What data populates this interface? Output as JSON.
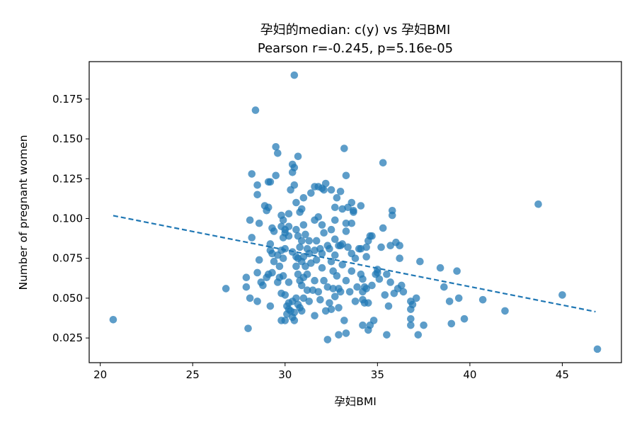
{
  "chart_data": {
    "type": "scatter",
    "title": "孕妇的median: c(y) vs 孕妇BMI",
    "subtitle": "Pearson r=-0.245, p=5.16e-05",
    "xlabel": "孕妇BMI",
    "ylabel": "Number of pregnant women",
    "xlim": [
      19.4,
      48.2
    ],
    "ylim": [
      0.0095,
      0.1985
    ],
    "xticks": [
      20,
      25,
      30,
      35,
      40,
      45
    ],
    "yticks": [
      0.025,
      0.05,
      0.075,
      0.1,
      0.125,
      0.15,
      0.175
    ],
    "ytick_labels": [
      "0.025",
      "0.050",
      "0.075",
      "0.100",
      "0.125",
      "0.150",
      "0.175"
    ],
    "point_color": "#1f77b4",
    "trend_line": {
      "style": "dashed",
      "color": "#1f77b4",
      "x": [
        20.7,
        46.8
      ],
      "y": [
        0.1018,
        0.0415
      ]
    },
    "points": [
      [
        20.7,
        0.0365
      ],
      [
        26.8,
        0.056
      ],
      [
        27.9,
        0.063
      ],
      [
        27.9,
        0.057
      ],
      [
        28.0,
        0.031
      ],
      [
        28.1,
        0.099
      ],
      [
        28.2,
        0.128
      ],
      [
        28.2,
        0.088
      ],
      [
        28.1,
        0.05
      ],
      [
        28.4,
        0.168
      ],
      [
        28.5,
        0.115
      ],
      [
        28.5,
        0.121
      ],
      [
        28.5,
        0.066
      ],
      [
        28.5,
        0.048
      ],
      [
        28.6,
        0.097
      ],
      [
        28.6,
        0.074
      ],
      [
        28.7,
        0.06
      ],
      [
        28.8,
        0.058
      ],
      [
        28.9,
        0.108
      ],
      [
        29.0,
        0.105
      ],
      [
        29.0,
        0.063
      ],
      [
        29.1,
        0.123
      ],
      [
        29.1,
        0.107
      ],
      [
        29.1,
        0.065
      ],
      [
        29.2,
        0.123
      ],
      [
        29.2,
        0.084
      ],
      [
        29.2,
        0.08
      ],
      [
        29.2,
        0.045
      ],
      [
        29.3,
        0.094
      ],
      [
        29.3,
        0.078
      ],
      [
        29.3,
        0.066
      ],
      [
        29.4,
        0.092
      ],
      [
        29.4,
        0.073
      ],
      [
        29.5,
        0.145
      ],
      [
        29.5,
        0.127
      ],
      [
        29.6,
        0.141
      ],
      [
        29.6,
        0.077
      ],
      [
        29.6,
        0.06
      ],
      [
        29.7,
        0.07
      ],
      [
        29.7,
        0.063
      ],
      [
        29.8,
        0.102
      ],
      [
        29.8,
        0.095
      ],
      [
        29.8,
        0.08
      ],
      [
        29.8,
        0.053
      ],
      [
        29.8,
        0.036
      ],
      [
        29.9,
        0.099
      ],
      [
        29.9,
        0.088
      ],
      [
        29.9,
        0.075
      ],
      [
        29.9,
        0.064
      ],
      [
        30.0,
        0.093
      ],
      [
        30.0,
        0.091
      ],
      [
        30.0,
        0.081
      ],
      [
        30.0,
        0.052
      ],
      [
        30.0,
        0.036
      ],
      [
        30.1,
        0.045
      ],
      [
        30.1,
        0.04
      ],
      [
        30.2,
        0.103
      ],
      [
        30.2,
        0.095
      ],
      [
        30.2,
        0.089
      ],
      [
        30.2,
        0.06
      ],
      [
        30.2,
        0.047
      ],
      [
        30.2,
        0.043
      ],
      [
        30.3,
        0.118
      ],
      [
        30.3,
        0.042
      ],
      [
        30.4,
        0.134
      ],
      [
        30.4,
        0.129
      ],
      [
        30.4,
        0.079
      ],
      [
        30.4,
        0.048
      ],
      [
        30.4,
        0.038
      ],
      [
        30.5,
        0.19
      ],
      [
        30.5,
        0.132
      ],
      [
        30.5,
        0.121
      ],
      [
        30.5,
        0.036
      ],
      [
        30.5,
        0.041
      ],
      [
        30.6,
        0.11
      ],
      [
        30.6,
        0.093
      ],
      [
        30.6,
        0.076
      ],
      [
        30.6,
        0.07
      ],
      [
        30.6,
        0.05
      ],
      [
        30.7,
        0.139
      ],
      [
        30.7,
        0.089
      ],
      [
        30.7,
        0.075
      ],
      [
        30.7,
        0.065
      ],
      [
        30.7,
        0.046
      ],
      [
        30.8,
        0.104
      ],
      [
        30.8,
        0.082
      ],
      [
        30.8,
        0.061
      ],
      [
        30.8,
        0.044
      ],
      [
        30.9,
        0.106
      ],
      [
        30.9,
        0.086
      ],
      [
        30.9,
        0.073
      ],
      [
        30.9,
        0.058
      ],
      [
        30.9,
        0.042
      ],
      [
        31.0,
        0.113
      ],
      [
        31.0,
        0.096
      ],
      [
        31.0,
        0.076
      ],
      [
        31.0,
        0.063
      ],
      [
        31.0,
        0.05
      ],
      [
        31.1,
        0.09
      ],
      [
        31.1,
        0.07
      ],
      [
        31.2,
        0.081
      ],
      [
        31.2,
        0.065
      ],
      [
        31.2,
        0.055
      ],
      [
        31.3,
        0.086
      ],
      [
        31.3,
        0.078
      ],
      [
        31.3,
        0.048
      ],
      [
        31.4,
        0.116
      ],
      [
        31.4,
        0.072
      ],
      [
        31.5,
        0.055
      ],
      [
        31.6,
        0.12
      ],
      [
        31.6,
        0.099
      ],
      [
        31.6,
        0.08
      ],
      [
        31.6,
        0.061
      ],
      [
        31.6,
        0.039
      ],
      [
        31.7,
        0.086
      ],
      [
        31.7,
        0.074
      ],
      [
        31.8,
        0.12
      ],
      [
        31.8,
        0.101
      ],
      [
        31.8,
        0.054
      ],
      [
        31.9,
        0.081
      ],
      [
        31.9,
        0.049
      ],
      [
        32.0,
        0.119
      ],
      [
        32.0,
        0.096
      ],
      [
        32.0,
        0.078
      ],
      [
        32.0,
        0.069
      ],
      [
        32.1,
        0.118
      ],
      [
        32.1,
        0.091
      ],
      [
        32.1,
        0.061
      ],
      [
        32.2,
        0.122
      ],
      [
        32.2,
        0.042
      ],
      [
        32.3,
        0.083
      ],
      [
        32.3,
        0.057
      ],
      [
        32.3,
        0.024
      ],
      [
        32.4,
        0.081
      ],
      [
        32.4,
        0.047
      ],
      [
        32.5,
        0.118
      ],
      [
        32.5,
        0.093
      ],
      [
        32.5,
        0.073
      ],
      [
        32.5,
        0.043
      ],
      [
        32.6,
        0.067
      ],
      [
        32.6,
        0.056
      ],
      [
        32.7,
        0.107
      ],
      [
        32.7,
        0.099
      ],
      [
        32.7,
        0.087
      ],
      [
        32.7,
        0.077
      ],
      [
        32.7,
        0.051
      ],
      [
        32.8,
        0.113
      ],
      [
        32.8,
        0.064
      ],
      [
        32.9,
        0.083
      ],
      [
        32.9,
        0.056
      ],
      [
        32.9,
        0.044
      ],
      [
        32.9,
        0.027
      ],
      [
        33.0,
        0.117
      ],
      [
        33.0,
        0.083
      ],
      [
        33.0,
        0.054
      ],
      [
        33.1,
        0.106
      ],
      [
        33.1,
        0.084
      ],
      [
        33.1,
        0.071
      ],
      [
        33.2,
        0.144
      ],
      [
        33.2,
        0.036
      ],
      [
        33.3,
        0.127
      ],
      [
        33.3,
        0.097
      ],
      [
        33.3,
        0.092
      ],
      [
        33.3,
        0.061
      ],
      [
        33.3,
        0.028
      ],
      [
        33.4,
        0.107
      ],
      [
        33.4,
        0.082
      ],
      [
        33.5,
        0.054
      ],
      [
        33.6,
        0.11
      ],
      [
        33.6,
        0.097
      ],
      [
        33.6,
        0.078
      ],
      [
        33.6,
        0.067
      ],
      [
        33.7,
        0.104
      ],
      [
        33.7,
        0.105
      ],
      [
        33.8,
        0.048
      ],
      [
        33.8,
        0.075
      ],
      [
        33.9,
        0.057
      ],
      [
        34.0,
        0.081
      ],
      [
        34.1,
        0.065
      ],
      [
        34.1,
        0.108
      ],
      [
        34.1,
        0.081
      ],
      [
        34.2,
        0.062
      ],
      [
        34.2,
        0.054
      ],
      [
        34.2,
        0.049
      ],
      [
        34.2,
        0.033
      ],
      [
        34.3,
        0.047
      ],
      [
        34.3,
        0.057
      ],
      [
        34.4,
        0.082
      ],
      [
        34.4,
        0.076
      ],
      [
        34.4,
        0.056
      ],
      [
        34.5,
        0.086
      ],
      [
        34.5,
        0.047
      ],
      [
        34.5,
        0.03
      ],
      [
        34.6,
        0.089
      ],
      [
        34.6,
        0.033
      ],
      [
        34.7,
        0.089
      ],
      [
        34.7,
        0.058
      ],
      [
        34.8,
        0.036
      ],
      [
        34.9,
        0.065
      ],
      [
        35.0,
        0.066
      ],
      [
        35.0,
        0.068
      ],
      [
        35.1,
        0.062
      ],
      [
        35.2,
        0.082
      ],
      [
        35.3,
        0.135
      ],
      [
        35.3,
        0.094
      ],
      [
        35.4,
        0.052
      ],
      [
        35.5,
        0.065
      ],
      [
        35.5,
        0.027
      ],
      [
        35.6,
        0.045
      ],
      [
        35.7,
        0.083
      ],
      [
        35.7,
        0.06
      ],
      [
        35.8,
        0.105
      ],
      [
        35.8,
        0.102
      ],
      [
        35.9,
        0.053
      ],
      [
        36.0,
        0.085
      ],
      [
        36.1,
        0.056
      ],
      [
        36.2,
        0.083
      ],
      [
        36.2,
        0.075
      ],
      [
        36.3,
        0.058
      ],
      [
        36.4,
        0.054
      ],
      [
        36.8,
        0.048
      ],
      [
        36.8,
        0.043
      ],
      [
        36.8,
        0.037
      ],
      [
        36.8,
        0.033
      ],
      [
        36.9,
        0.046
      ],
      [
        37.1,
        0.05
      ],
      [
        37.2,
        0.027
      ],
      [
        37.3,
        0.073
      ],
      [
        37.5,
        0.033
      ],
      [
        38.4,
        0.069
      ],
      [
        38.6,
        0.057
      ],
      [
        38.9,
        0.048
      ],
      [
        39.0,
        0.034
      ],
      [
        39.3,
        0.067
      ],
      [
        39.4,
        0.05
      ],
      [
        39.7,
        0.037
      ],
      [
        40.7,
        0.049
      ],
      [
        41.9,
        0.042
      ],
      [
        43.7,
        0.109
      ],
      [
        45.0,
        0.052
      ],
      [
        46.9,
        0.018
      ]
    ]
  }
}
